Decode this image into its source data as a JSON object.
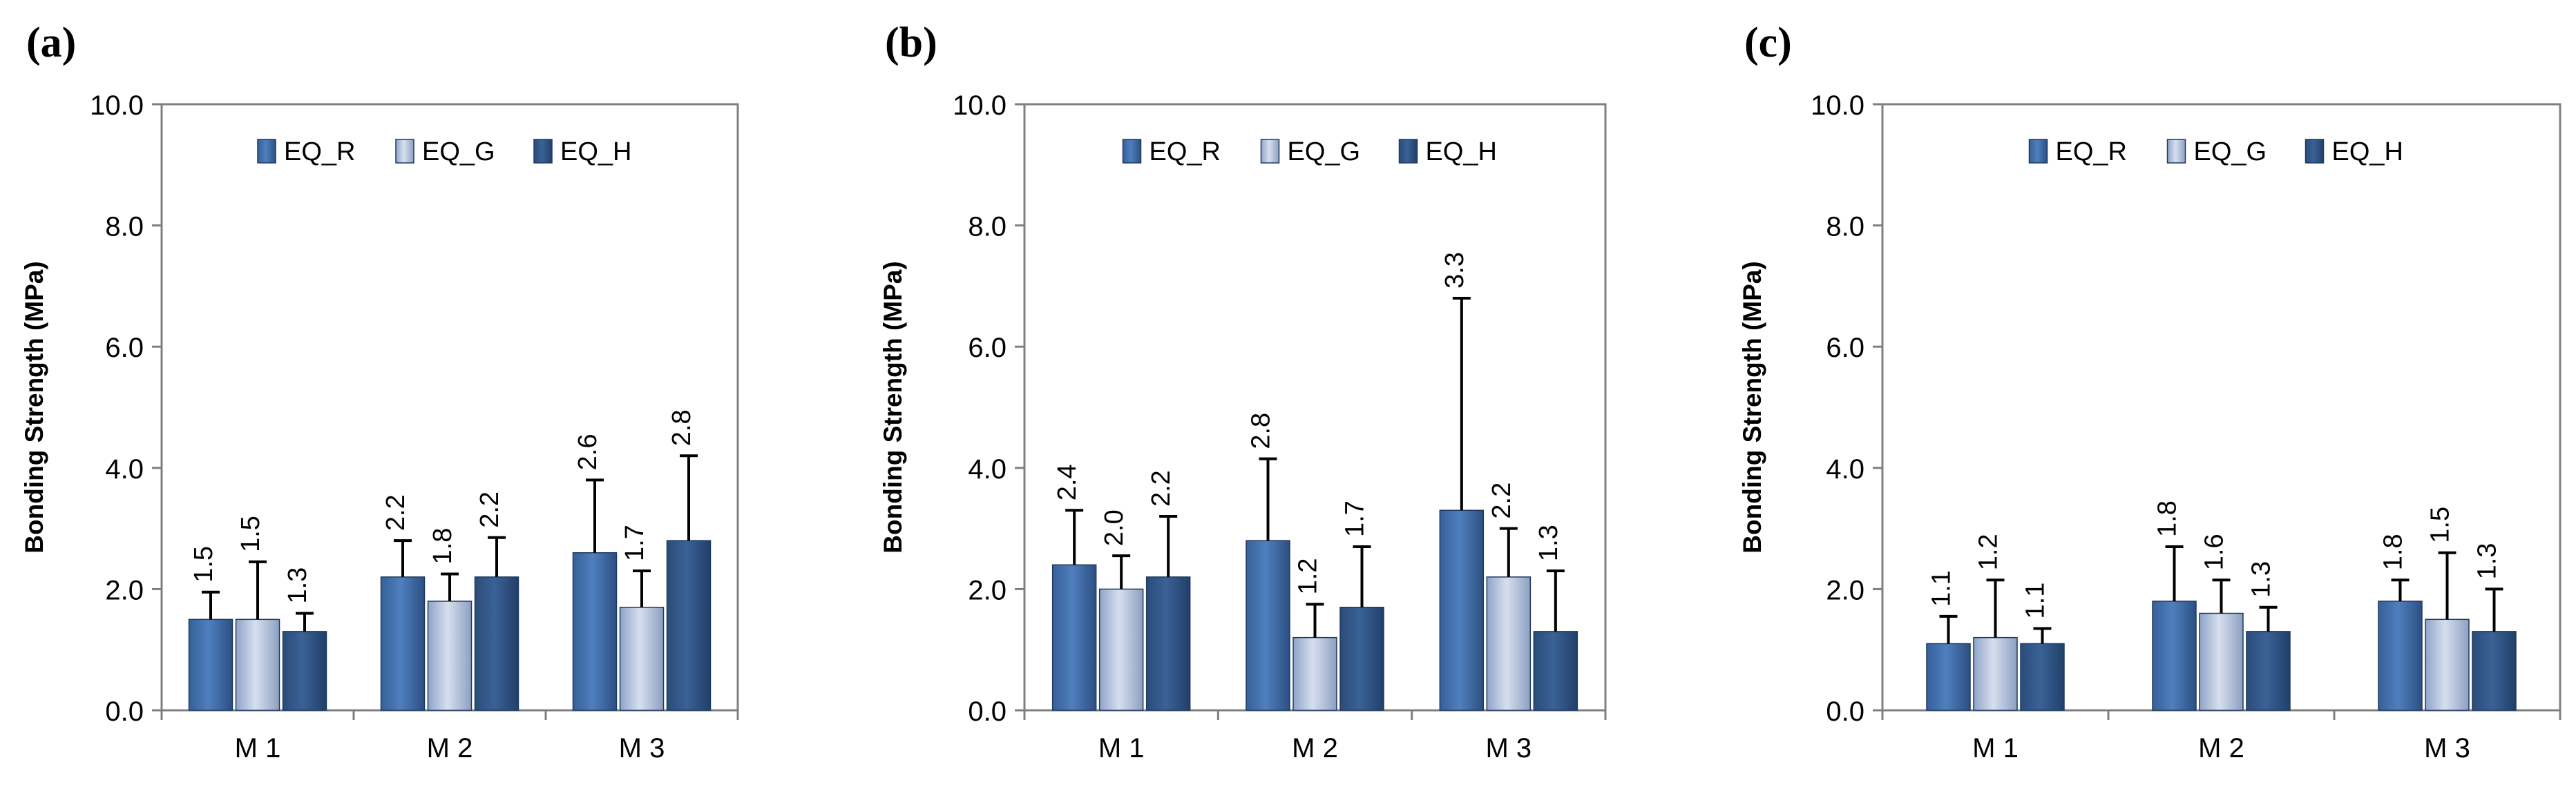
{
  "figure": {
    "colors": {
      "EQ_R": "#4f7fbe",
      "EQ_G": "#b5c3dc",
      "EQ_H": "#3a6296",
      "axis": "#7f7f7f",
      "error_bar": "#000000",
      "text": "#000000"
    }
  },
  "chart_data": [
    {
      "panel_label": "(a)",
      "type": "bar",
      "ylabel": "Bonding Strength (MPa)",
      "ylim": [
        0,
        10
      ],
      "yticks": [
        "0.0",
        "2.0",
        "4.0",
        "6.0",
        "8.0",
        "10.0"
      ],
      "legend_position": "top-center",
      "categories": [
        "M 1",
        "M 2",
        "M 3"
      ],
      "series": [
        {
          "name": "EQ_R",
          "values": [
            1.5,
            2.2,
            2.6
          ],
          "labels": [
            "1.5",
            "2.2",
            "2.6"
          ],
          "errors": [
            0.45,
            0.6,
            1.2
          ]
        },
        {
          "name": "EQ_G",
          "values": [
            1.5,
            1.8,
            1.7
          ],
          "labels": [
            "1.5",
            "1.8",
            "1.7"
          ],
          "errors": [
            0.95,
            0.45,
            0.6
          ]
        },
        {
          "name": "EQ_H",
          "values": [
            1.3,
            2.2,
            2.8
          ],
          "labels": [
            "1.3",
            "2.2",
            "2.8"
          ],
          "errors": [
            0.3,
            0.65,
            1.4
          ]
        }
      ]
    },
    {
      "panel_label": "(b)",
      "type": "bar",
      "ylabel": "Bonding Strength (MPa)",
      "ylim": [
        0,
        10
      ],
      "yticks": [
        "0.0",
        "2.0",
        "4.0",
        "6.0",
        "8.0",
        "10.0"
      ],
      "legend_position": "top-center",
      "categories": [
        "M 1",
        "M 2",
        "M 3"
      ],
      "series": [
        {
          "name": "EQ_R",
          "values": [
            2.4,
            2.8,
            3.3
          ],
          "labels": [
            "2.4",
            "2.8",
            "3.3"
          ],
          "errors": [
            0.9,
            1.35,
            3.5
          ]
        },
        {
          "name": "EQ_G",
          "values": [
            2.0,
            1.2,
            2.2
          ],
          "labels": [
            "2.0",
            "1.2",
            "2.2"
          ],
          "errors": [
            0.55,
            0.55,
            0.8
          ]
        },
        {
          "name": "EQ_H",
          "values": [
            2.2,
            1.7,
            1.3
          ],
          "labels": [
            "2.2",
            "1.7",
            "1.3"
          ],
          "errors": [
            1.0,
            1.0,
            1.0
          ]
        }
      ]
    },
    {
      "panel_label": "(c)",
      "type": "bar",
      "ylabel": "Bonding Strength (MPa)",
      "ylim": [
        0,
        10
      ],
      "yticks": [
        "0.0",
        "2.0",
        "4.0",
        "6.0",
        "8.0",
        "10.0"
      ],
      "legend_position": "top-center",
      "categories": [
        "M 1",
        "M 2",
        "M 3"
      ],
      "series": [
        {
          "name": "EQ_R",
          "values": [
            1.1,
            1.8,
            1.8
          ],
          "labels": [
            "1.1",
            "1.8",
            "1.8"
          ],
          "errors": [
            0.45,
            0.9,
            0.35
          ]
        },
        {
          "name": "EQ_G",
          "values": [
            1.2,
            1.6,
            1.5
          ],
          "labels": [
            "1.2",
            "1.6",
            "1.5"
          ],
          "errors": [
            0.95,
            0.55,
            1.1
          ]
        },
        {
          "name": "EQ_H",
          "values": [
            1.1,
            1.3,
            1.3
          ],
          "labels": [
            "1.1",
            "1.3",
            "1.3"
          ],
          "errors": [
            0.25,
            0.4,
            0.7
          ]
        }
      ]
    }
  ]
}
